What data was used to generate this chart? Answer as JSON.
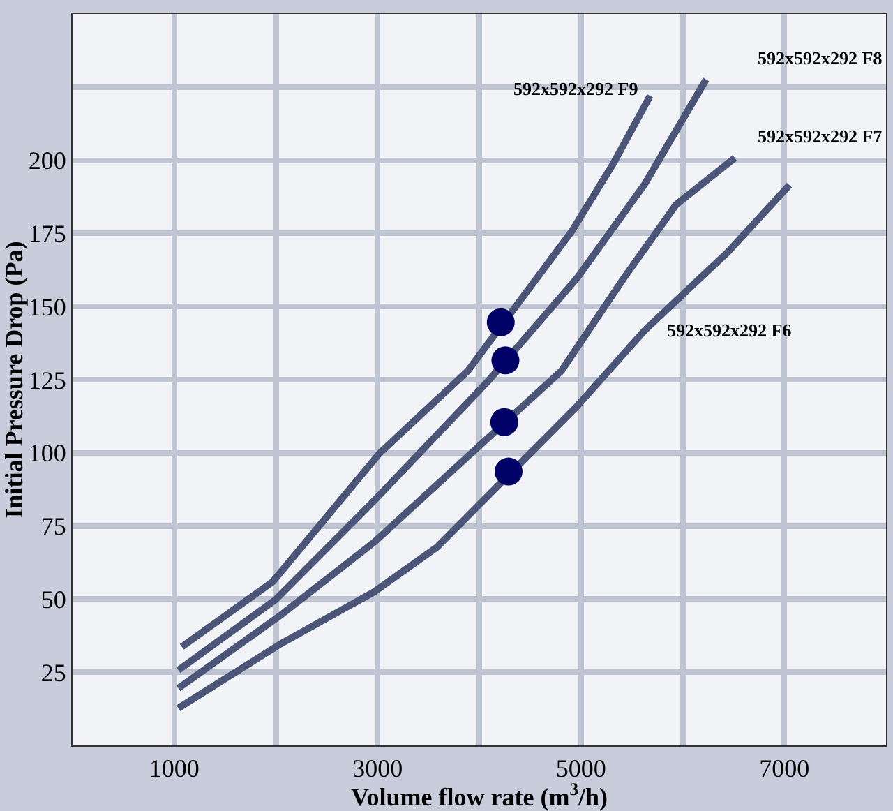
{
  "chart_data": {
    "type": "line",
    "xlabel": "Volume flow rate (m$^{3}$/h)",
    "ylabel": "Initial Pressure Drop (Pa)",
    "xlim": [
      0,
      8000
    ],
    "ylim": [
      0,
      250
    ],
    "xticks": [
      {
        "value": 0,
        "label": null
      },
      1000,
      {
        "value": 2000,
        "label": null
      },
      3000,
      {
        "value": 4000,
        "label": null
      },
      5000,
      {
        "value": 6000,
        "label": null
      },
      7000,
      {
        "value": 8000,
        "label": null
      }
    ],
    "yticks": [
      {
        "value": 0,
        "label": null
      },
      25,
      50,
      75,
      100,
      125,
      150,
      175,
      200,
      {
        "value": 225,
        "label": null
      },
      {
        "value": 250,
        "label": null
      }
    ],
    "grid": true,
    "legend": false,
    "marker": "none",
    "line_style": "solid",
    "series": [
      {
        "name": "592x592x292 F9",
        "color": "#4a5578",
        "x": [
          1075,
          1970,
          3018,
          3887,
          4911,
          5320,
          5680
        ],
        "values": [
          33.7,
          56,
          99.8,
          128,
          175.8,
          199,
          222
        ]
      },
      {
        "name": "592x592x292 F8",
        "color": "#4a5578",
        "x": [
          1040,
          1996,
          2968,
          4094,
          4963,
          5628,
          6231
        ],
        "values": [
          25.7,
          49.8,
          83.7,
          124.8,
          159.8,
          191.9,
          227.6
        ]
      },
      {
        "name": "592x592x292 F7",
        "color": "#4a5578",
        "x": [
          1040,
          2046,
          2967,
          4807,
          5423,
          5935,
          6513
        ],
        "values": [
          19.5,
          44.5,
          69.5,
          128,
          159.8,
          184.8,
          200.8
        ]
      },
      {
        "name": "592x592x292 F6",
        "color": "#4a5578",
        "x": [
          1040,
          2046,
          2967,
          3582,
          4963,
          5628,
          6447,
          7050
        ],
        "values": [
          12.7,
          34.7,
          52.5,
          67.7,
          116,
          141.9,
          168.7,
          191.5
        ]
      },
      {
        "type": "scatter",
        "color": "#000066",
        "marker": "circle",
        "x": [
          4211,
          4257,
          4246,
          4288
        ],
        "values": [
          144.6,
          131.6,
          110.5,
          93.6
        ]
      }
    ]
  }
}
